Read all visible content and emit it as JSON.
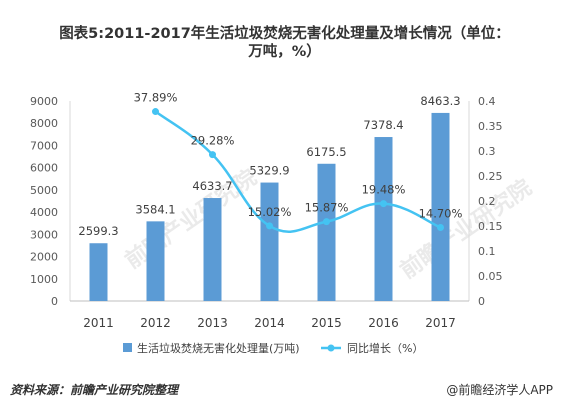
{
  "header": {
    "title_line1": "图表5:2011-2017年生活垃圾焚烧无害化处理量及增长情况（单位：",
    "title_line2": "万吨，%）"
  },
  "footer": {
    "source": "资料来源：前瞻产业研究院整理",
    "brand": "@前瞻经济学人APP"
  },
  "watermark": "前瞻产业研究院",
  "colors": {
    "bar": "#5B9BD5",
    "line": "#44C3F2"
  },
  "chart_data": {
    "type": "bar",
    "categories": [
      "2011",
      "2012",
      "2013",
      "2014",
      "2015",
      "2016",
      "2017"
    ],
    "series": [
      {
        "name": "生活垃圾焚烧无害化处理量(万吨)",
        "type": "bar",
        "axis": "left",
        "values": [
          2599.3,
          3584.1,
          4633.7,
          5329.9,
          6175.5,
          7378.4,
          8463.3
        ],
        "labels": [
          "2599.3",
          "3584.1",
          "4633.7",
          "5329.9",
          "6175.5",
          "7378.4",
          "8463.3"
        ]
      },
      {
        "name": "同比增长（%）",
        "type": "line",
        "axis": "right",
        "values": [
          null,
          0.3789,
          0.2928,
          0.1502,
          0.1587,
          0.1948,
          0.147
        ],
        "labels": [
          "",
          "37.89%",
          "29.28%",
          "15.02%",
          "15.87%",
          "19.48%",
          "14.70%"
        ]
      }
    ],
    "y_left": {
      "min": 0,
      "max": 9000,
      "ticks": [
        "0",
        "1000",
        "2000",
        "3000",
        "4000",
        "5000",
        "6000",
        "7000",
        "8000",
        "9000"
      ]
    },
    "y_right": {
      "min": 0,
      "max": 0.4,
      "ticks": [
        "0",
        "0.05",
        "0.1",
        "0.15",
        "0.2",
        "0.25",
        "0.3",
        "0.35",
        "0.4"
      ]
    },
    "legend_position": "bottom-center",
    "grid": false
  }
}
